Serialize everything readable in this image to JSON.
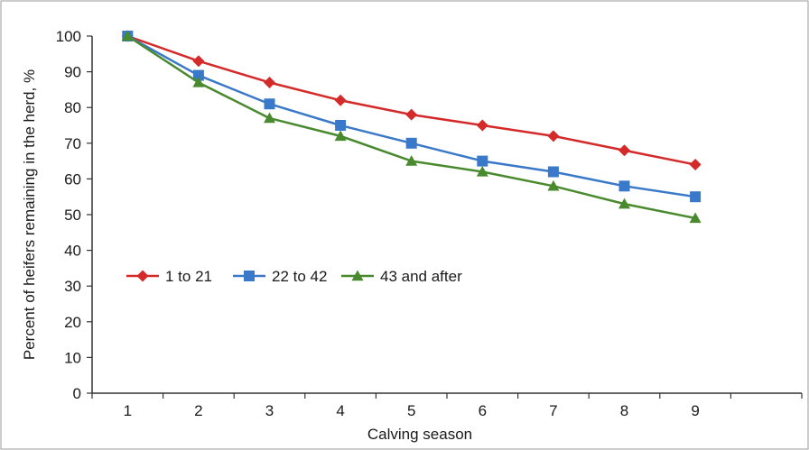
{
  "chart_data": {
    "type": "line",
    "xlabel": "Calving season",
    "ylabel": "Percent of heifers remaining in the herd, %",
    "x": [
      1,
      2,
      3,
      4,
      5,
      6,
      7,
      8,
      9
    ],
    "xlim": [
      0.5,
      10.5
    ],
    "ylim": [
      0,
      100
    ],
    "xticks": [
      1,
      2,
      3,
      4,
      5,
      6,
      7,
      8,
      9
    ],
    "yticks": [
      0,
      10,
      20,
      30,
      40,
      50,
      60,
      70,
      80,
      90,
      100
    ],
    "grid": false,
    "legend_position": "left, inside plot",
    "series": [
      {
        "name": "1 to 21",
        "color": "#d42a2a",
        "marker": "diamond",
        "values": [
          100,
          93,
          87,
          82,
          78,
          75,
          72,
          68,
          64
        ]
      },
      {
        "name": "22 to 42",
        "color": "#3a78c9",
        "marker": "square",
        "values": [
          100,
          89,
          81,
          75,
          70,
          65,
          62,
          58,
          55
        ]
      },
      {
        "name": "43 and after",
        "color": "#4a8a2e",
        "marker": "triangle",
        "values": [
          100,
          87,
          77,
          72,
          65,
          62,
          58,
          53,
          49
        ]
      }
    ]
  }
}
